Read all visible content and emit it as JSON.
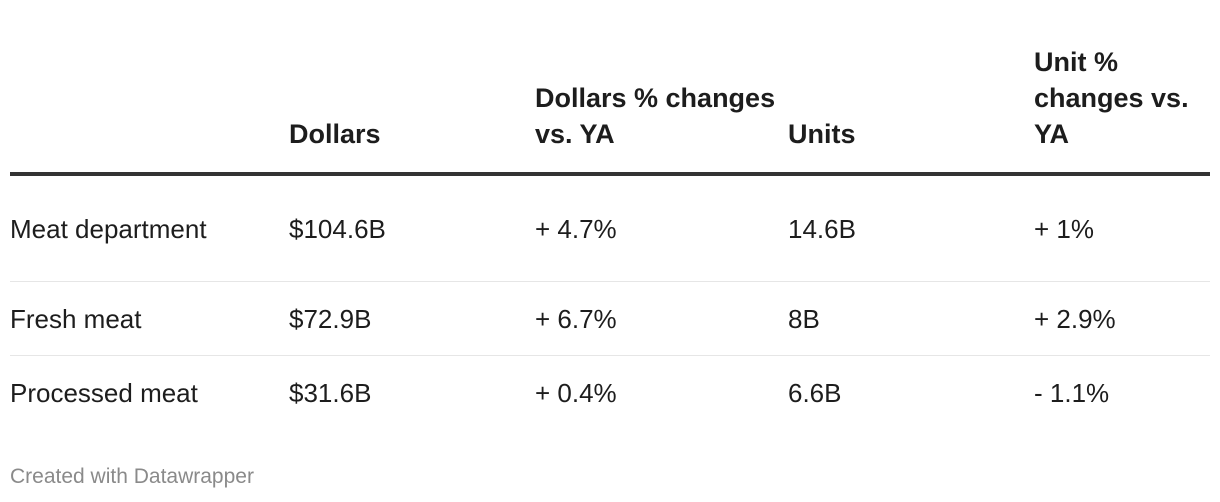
{
  "chart_data": {
    "type": "table",
    "columns": [
      "",
      "Dollars",
      "Dollars % changes vs. YA",
      "Units",
      "Unit % changes vs. YA"
    ],
    "rows": [
      {
        "label": "Meat department",
        "dollars": "$104.6B",
        "dollars_change": "+ 4.7%",
        "units": "14.6B",
        "units_change": "+ 1%"
      },
      {
        "label": "Fresh meat",
        "dollars": "$72.9B",
        "dollars_change": "+ 6.7%",
        "units": "8B",
        "units_change": "+ 2.9%"
      },
      {
        "label": "Processed meat",
        "dollars": "$31.6B",
        "dollars_change": "+ 0.4%",
        "units": "6.6B",
        "units_change": "- 1.1%"
      }
    ]
  },
  "footer": {
    "credit": "Created with Datawrapper"
  },
  "colors": {
    "text": "#1d1d1d",
    "header_rule": "#333333",
    "row_divider": "#e6e6e6",
    "footer_text": "#8a8a8a"
  }
}
